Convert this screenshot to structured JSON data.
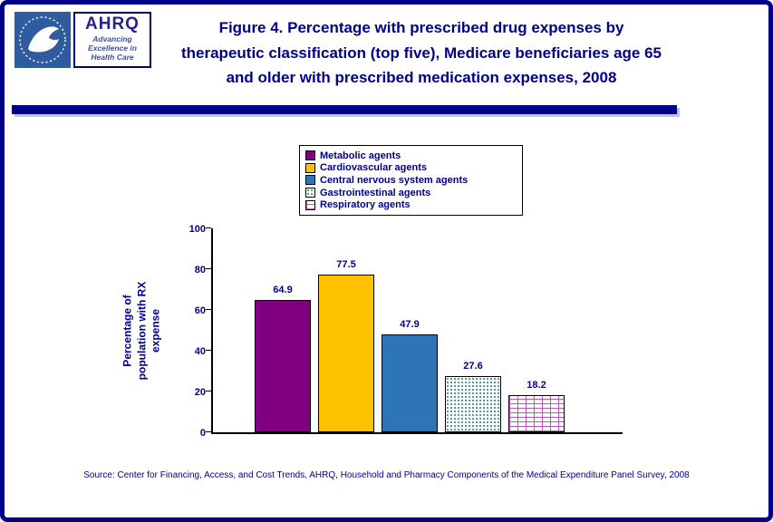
{
  "header": {
    "hhs_logo_name": "hhs-seal",
    "ahrq": {
      "name": "AHRQ",
      "tagline": [
        "Advancing",
        "Excellence in",
        "Health Care"
      ]
    },
    "title_lines": [
      "Figure 4. Percentage with prescribed drug expenses by",
      "therapeutic classification (top five), Medicare beneficiaries age 65",
      "and older with prescribed medication expenses, 2008"
    ]
  },
  "chart_data": {
    "type": "bar",
    "title": "Figure 4. Percentage with prescribed drug expenses by therapeutic classification (top five), Medicare beneficiaries age 65 and older with prescribed medication expenses, 2008",
    "categories": [
      "Metabolic agents",
      "Cardiovascular agents",
      "Central nervous system agents",
      "Gastrointestinal agents",
      "Respiratory agents"
    ],
    "values": [
      64.9,
      77.5,
      47.9,
      27.6,
      18.2
    ],
    "xlabel": "",
    "ylabel": "Percentage of population with RX expense",
    "ylim": [
      0,
      100
    ],
    "yticks": [
      0,
      20,
      40,
      60,
      80,
      100
    ],
    "grid": false,
    "legend_position": "top",
    "series_styles": [
      {
        "label": "Metabolic agents",
        "color": "#800080",
        "pattern": "solid"
      },
      {
        "label": "Cardiovascular agents",
        "color": "#FFC200",
        "pattern": "solid"
      },
      {
        "label": "Central nervous system agents",
        "color": "#2E75B6",
        "pattern": "solid"
      },
      {
        "label": "Gastrointestinal agents",
        "color": "#1C8C8C",
        "pattern": "dots"
      },
      {
        "label": "Respiratory agents",
        "color": "#B45AB4",
        "pattern": "bricks"
      }
    ]
  },
  "source": "Source: Center for Financing, Access, and Cost Trends, AHRQ, Household and Pharmacy Components of the Medical Expenditure Panel Survey, 2008"
}
